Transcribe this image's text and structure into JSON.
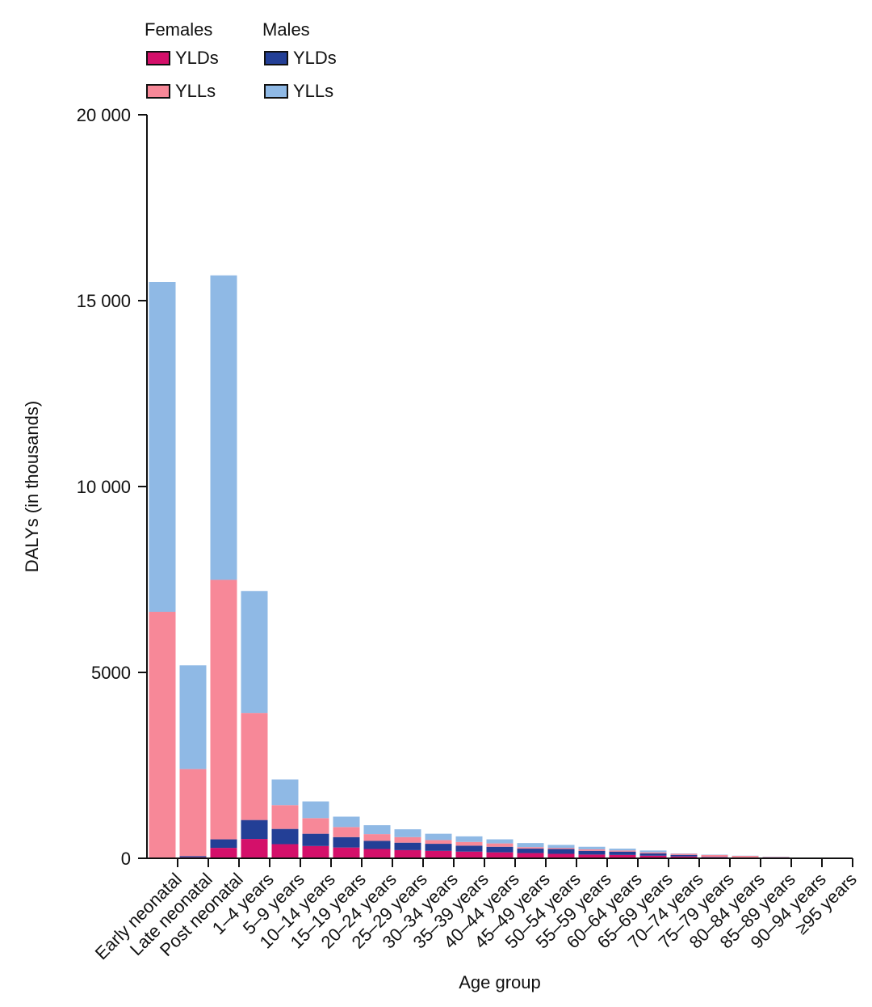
{
  "chart_data": {
    "type": "bar",
    "stacked": true,
    "xlabel": "Age group",
    "ylabel": "DALYs (in thousands)",
    "ylim": [
      0,
      20000
    ],
    "yticks": [
      {
        "value": 0,
        "label": "0"
      },
      {
        "value": 5000,
        "label": "5000"
      },
      {
        "value": 10000,
        "label": "10 000"
      },
      {
        "value": 15000,
        "label": "15 000"
      },
      {
        "value": 20000,
        "label": "20 000"
      }
    ],
    "grid": false,
    "legend_position": "top-left",
    "legend": {
      "groups": [
        {
          "title": "Females",
          "items": [
            {
              "label": "YLDs",
              "series_index": 0
            },
            {
              "label": "YLLs",
              "series_index": 1
            }
          ]
        },
        {
          "title": "Males",
          "items": [
            {
              "label": "YLDs",
              "series_index": 2
            },
            {
              "label": "YLLs",
              "series_index": 3
            }
          ]
        }
      ]
    },
    "categories": [
      "Early neonatal",
      "Late neonatal",
      "Post neonatal",
      "1–4 years",
      "5–9 years",
      "10–14 years",
      "15–19 years",
      "20–24 years",
      "25–29 years",
      "30–34 years",
      "35–39 years",
      "40–44 years",
      "45–49 years",
      "50–54 years",
      "55–59 years",
      "60–64 years",
      "65–69 years",
      "70–74 years",
      "75–79 years",
      "80–84 years",
      "85–89 years",
      "90–94 years",
      "≥95 years"
    ],
    "stack_order": [
      0,
      2,
      1,
      3
    ],
    "series": [
      {
        "color": "#d4106a",
        "values": [
          10,
          30,
          280,
          520,
          380,
          330,
          290,
          250,
          220,
          200,
          180,
          160,
          140,
          120,
          100,
          90,
          70,
          50,
          30,
          20,
          10,
          5,
          2
        ]
      },
      {
        "color": "#f78898",
        "values": [
          6610,
          2340,
          6980,
          2880,
          640,
          420,
          270,
          180,
          150,
          100,
          100,
          90,
          40,
          30,
          40,
          30,
          30,
          30,
          50,
          40,
          20,
          10,
          3
        ]
      },
      {
        "color": "#233f96",
        "values": [
          10,
          30,
          230,
          510,
          410,
          330,
          280,
          220,
          200,
          190,
          160,
          150,
          120,
          130,
          100,
          90,
          60,
          40,
          10,
          5,
          3,
          2,
          1
        ]
      },
      {
        "color": "#8fb9e5",
        "values": [
          8870,
          2790,
          8190,
          3280,
          690,
          450,
          280,
          240,
          210,
          170,
          150,
          110,
          110,
          80,
          70,
          50,
          50,
          10,
          10,
          5,
          10,
          3,
          2
        ]
      }
    ]
  }
}
